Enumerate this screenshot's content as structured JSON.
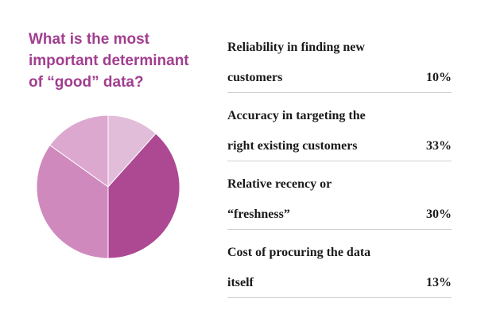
{
  "chart_data": {
    "type": "pie",
    "title_lines": [
      "What is the most",
      "important determinant",
      "of “good” data?"
    ],
    "slices": [
      {
        "label_lines": [
          "Reliability in finding new",
          "customers"
        ],
        "value": 10,
        "display": "10%",
        "color": "#e2bdda"
      },
      {
        "label_lines": [
          "Accuracy in targeting the",
          "right existing customers"
        ],
        "value": 33,
        "display": "33%",
        "color": "#ad4893"
      },
      {
        "label_lines": [
          "Relative recency or",
          "“freshness”"
        ],
        "value": 30,
        "display": "30%",
        "color": "#cf89bd"
      },
      {
        "label_lines": [
          "Cost of procuring the data",
          "itself"
        ],
        "value": 13,
        "display": "13%",
        "color": "#dca8cf"
      }
    ]
  }
}
